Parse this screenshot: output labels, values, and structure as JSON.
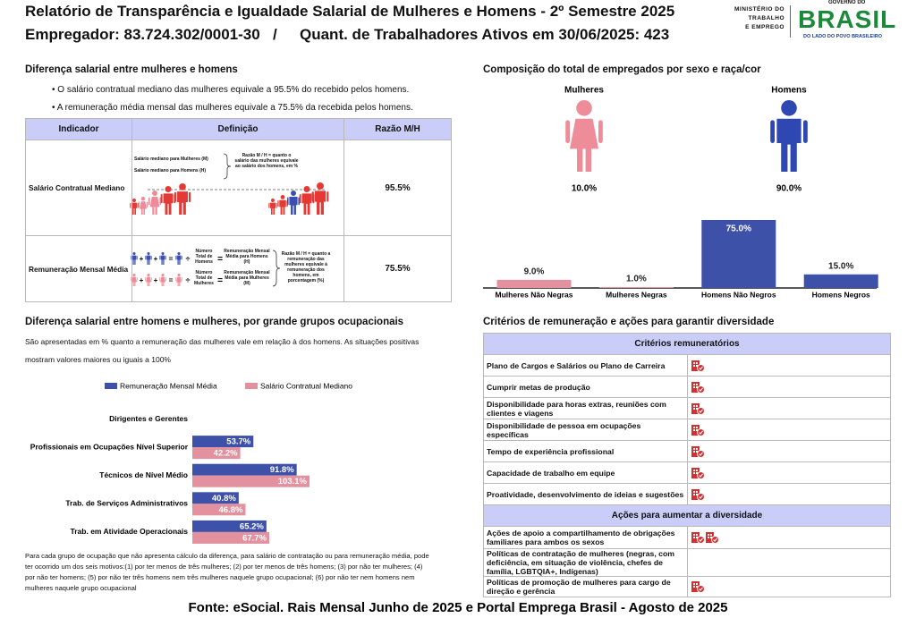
{
  "header": {
    "title": "Relatório de Transparência e Igualdade Salarial de Mulheres e Homens - 2º Semestre 2025",
    "employer": "Empregador: 83.724.302/0001-30",
    "separator": "/",
    "workers": "Quant. de Trabalhadores Ativos em 30/06/2025: 423"
  },
  "logos": {
    "ministry": [
      "MINISTÉRIO DO",
      "TRABALHO",
      "E EMPREGO"
    ],
    "gov_top": "GOVERNO DO",
    "gov_brand": "BRASIL",
    "gov_tagline": "DO LADO DO POVO BRASILEIRO"
  },
  "salary_gap": {
    "heading": "Diferença salarial entre mulheres e homens",
    "bullets": [
      "• O salário contratual mediano das mulheres equivale a 95.5% do recebido pelos homens.",
      "• A remuneração média mensal das mulheres equivale a 75.5% da recebida pelos homens."
    ],
    "table": {
      "columns": [
        "Indicador",
        "Definição",
        "Razão M/H"
      ],
      "rows": [
        [
          "Salário Contratual Mediano",
          "95.5%"
        ],
        [
          "Remuneração Mensal Média",
          "75.5%"
        ]
      ]
    },
    "illustration": {
      "median_women": "Salário mediano para Mulheres (M)",
      "median_men": "Salário mediano para Homens (H)",
      "median_ratio": "Razão M / H = quanto o salário das mulheres equivale ao salário dos homens, em %",
      "plus": "+",
      "equals": "=",
      "divide": "÷",
      "count_men": "Número Total de Homens",
      "pay_men": "Remuneração Mensal Média para Homens (H)",
      "count_women": "Número Total de Mulheres",
      "pay_women": "Remuneração Mensal Média para Mulheres (M)",
      "pay_ratio": "Razão M / H = quanto a remuneração das mulheres equivale à remuneração dos homens, em porcentagem (%)"
    }
  },
  "composition": {
    "heading": "Composição do total de empregados por sexo e raça/cor",
    "women": {
      "label": "Mulheres",
      "share": "10.0%"
    },
    "men": {
      "label": "Homens",
      "share": "90.0%"
    }
  },
  "occupational": {
    "heading": "Diferença salarial entre homens e mulheres, por grande grupos ocupacionais",
    "description": "São apresentadas em % quanto a remuneração das mulheres vale em relação à dos homens. As situações positivas mostram valores maiores ou iguais a 100%",
    "footnote": "Para cada grupo de ocupação que não apresenta cálculo da diferença, para salário de contratação ou para remuneração média, pode ter ocorrido um dos seis motivos:(1) por ter menos de três mulheres; (2) por ter menos de três homens; (3) por não ter mulheres; (4) por não ter homens; (5) por não ter três homens nem três mulheres naquele grupo ocupacional; (6) por não ter nem homens nem mulheres naquele grupo ocupacional"
  },
  "chart_data": [
    {
      "type": "bar",
      "categories": [
        "Mulheres Não Negras",
        "Mulheres Negras",
        "Homens Não Negros",
        "Homens Negros"
      ],
      "values": [
        9.0,
        1.0,
        75.0,
        15.0
      ],
      "value_labels": [
        "9.0%",
        "1.0%",
        "75.0%",
        "15.0%"
      ],
      "colors": [
        "#e3909f",
        "#e3909f",
        "#3e51a8",
        "#3e51a8"
      ]
    },
    {
      "type": "hbar",
      "legend": "top",
      "categories": [
        "Dirigentes e Gerentes",
        "Profissionais em Ocupações Nível Superior",
        "Técnicos de Nível Médio",
        "Trab. de Serviços Administrativos",
        "Trab. em Atividade Operacionais"
      ],
      "series": [
        {
          "name": "Remuneração Mensal Média",
          "color": "#3e51a8",
          "values": [
            null,
            53.7,
            91.8,
            40.8,
            65.2
          ],
          "value_labels": [
            null,
            "53.7%",
            "91.8%",
            "40.8%",
            "65.2%"
          ]
        },
        {
          "name": "Salário Contratual Mediano",
          "color": "#e3909f",
          "values": [
            null,
            42.2,
            103.1,
            46.8,
            67.7
          ],
          "value_labels": [
            null,
            "42.2%",
            "103.1%",
            "46.8%",
            "67.7%"
          ]
        }
      ]
    }
  ],
  "criteria": {
    "heading": "Critérios de remuneração e ações para garantir diversidade",
    "sections": [
      {
        "title": "Critérios remuneratórios",
        "rows": [
          {
            "text": "Plano de Cargos e Salários ou Plano de Carreira",
            "icons": 1
          },
          {
            "text": "Cumprir metas de produção",
            "icons": 1
          },
          {
            "text": "Disponibilidade para horas extras, reuniões com clientes e viagens",
            "icons": 1
          },
          {
            "text": "Disponibilidade de pessoa em ocupações específicas",
            "icons": 1
          },
          {
            "text": "Tempo de experiência profissional",
            "icons": 1
          },
          {
            "text": "Capacidade de trabalho em equipe",
            "icons": 1
          },
          {
            "text": "Proatividade, desenvolvimento de ideias e sugestões",
            "icons": 1
          }
        ]
      },
      {
        "title": "Ações para aumentar a diversidade",
        "rows": [
          {
            "text": "Ações de apoio a compartilhamento de obrigações familiares para ambos os sexos",
            "icons": 2
          },
          {
            "text": "Políticas de contratação de mulheres (negras, com deficiência, em situação de violência, chefes de família, LGBTQIA+, Indígenas)",
            "icons": 0
          },
          {
            "text": "Políticas de promoção de mulheres para cargo de direção e gerência",
            "icons": 1
          }
        ]
      }
    ]
  },
  "footer": "Fonte: eSocial. Rais Mensal Junho de 2025 e Portal Emprega Brasil - Agosto de 2025"
}
